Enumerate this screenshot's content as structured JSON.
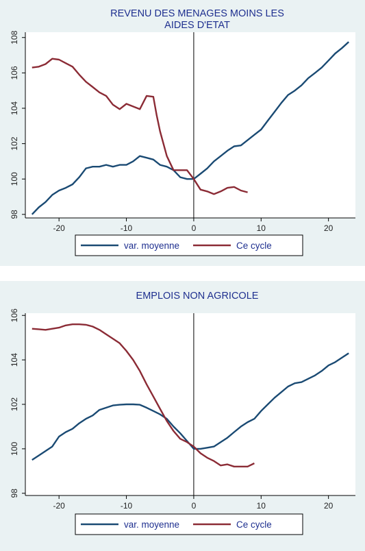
{
  "chart_data": [
    {
      "type": "line",
      "title_lines": [
        "REVENU DES MENAGES MOINS LES",
        "AIDES D'ETAT"
      ],
      "xlabel": "",
      "ylabel": "",
      "xlim": [
        -25,
        24
      ],
      "ylim": [
        97.8,
        108.3
      ],
      "x_ticks": [
        -20,
        -10,
        0,
        10,
        20
      ],
      "y_ticks": [
        98,
        100,
        102,
        104,
        106,
        108
      ],
      "grid": false,
      "vline_at": 0,
      "legend_position": "bottom",
      "series": [
        {
          "name": "var. moyenne",
          "color": "#1a4a73",
          "x": [
            -24,
            -23,
            -22,
            -21,
            -20,
            -19,
            -18,
            -17,
            -16,
            -15,
            -14,
            -13,
            -12,
            -11,
            -10,
            -9,
            -8,
            -7,
            -6,
            -5,
            -4,
            -3,
            -2,
            -1,
            0,
            1,
            2,
            3,
            4,
            5,
            6,
            7,
            8,
            9,
            10,
            11,
            12,
            13,
            14,
            15,
            16,
            17,
            18,
            19,
            20,
            21,
            22,
            23
          ],
          "y": [
            98.0,
            98.4,
            98.7,
            99.1,
            99.35,
            99.5,
            99.7,
            100.1,
            100.6,
            100.7,
            100.7,
            100.8,
            100.7,
            100.8,
            100.8,
            101.0,
            101.3,
            101.2,
            101.1,
            100.8,
            100.7,
            100.5,
            100.1,
            100.0,
            100.0,
            100.3,
            100.6,
            101.0,
            101.3,
            101.6,
            101.85,
            101.9,
            102.2,
            102.5,
            102.8,
            103.3,
            103.8,
            104.3,
            104.75,
            105.0,
            105.3,
            105.7,
            106.0,
            106.3,
            106.7,
            107.1,
            107.4,
            107.75
          ]
        },
        {
          "name": "Ce cycle",
          "color": "#8b2b35",
          "x": [
            -24,
            -23,
            -22,
            -21,
            -20,
            -19,
            -18,
            -17,
            -16,
            -15,
            -14,
            -13,
            -12,
            -11,
            -10,
            -9,
            -8,
            -7,
            -6,
            -5.5,
            -5,
            -4,
            -3,
            -2,
            -1,
            0,
            1,
            2,
            3,
            4,
            5,
            6,
            7,
            8
          ],
          "y": [
            106.3,
            106.35,
            106.5,
            106.8,
            106.75,
            106.55,
            106.35,
            105.9,
            105.5,
            105.2,
            104.9,
            104.7,
            104.2,
            103.95,
            104.25,
            104.1,
            103.95,
            104.7,
            104.65,
            103.6,
            102.7,
            101.3,
            100.5,
            100.5,
            100.5,
            100.0,
            99.4,
            99.3,
            99.15,
            99.3,
            99.5,
            99.55,
            99.35,
            99.25
          ]
        }
      ]
    },
    {
      "type": "line",
      "title_lines": [
        "EMPLOIS NON AGRICOLE"
      ],
      "xlabel": "",
      "ylabel": "",
      "xlim": [
        -25,
        24
      ],
      "ylim": [
        97.9,
        106.1
      ],
      "x_ticks": [
        -20,
        -10,
        0,
        10,
        20
      ],
      "y_ticks": [
        98,
        100,
        102,
        104,
        106
      ],
      "grid": false,
      "vline_at": 0,
      "legend_position": "bottom",
      "series": [
        {
          "name": "var. moyenne",
          "color": "#1a4a73",
          "x": [
            -24,
            -23,
            -22,
            -21,
            -20,
            -19,
            -18,
            -17,
            -16,
            -15,
            -14,
            -13,
            -12,
            -11,
            -10,
            -9,
            -8,
            -7,
            -6,
            -5,
            -4,
            -3,
            -2,
            -1,
            0,
            1,
            2,
            3,
            4,
            5,
            6,
            7,
            8,
            9,
            10,
            11,
            12,
            13,
            14,
            15,
            16,
            17,
            18,
            19,
            20,
            21,
            22,
            23
          ],
          "y": [
            99.5,
            99.7,
            99.9,
            100.1,
            100.55,
            100.75,
            100.9,
            101.15,
            101.35,
            101.5,
            101.75,
            101.85,
            101.95,
            101.98,
            102.0,
            102.0,
            101.98,
            101.85,
            101.7,
            101.55,
            101.35,
            101.0,
            100.7,
            100.35,
            100.0,
            100.0,
            100.05,
            100.1,
            100.3,
            100.5,
            100.75,
            101.0,
            101.2,
            101.35,
            101.7,
            102.0,
            102.3,
            102.55,
            102.8,
            102.95,
            103.0,
            103.15,
            103.3,
            103.5,
            103.75,
            103.9,
            104.1,
            104.3
          ]
        },
        {
          "name": "Ce cycle",
          "color": "#8b2b35",
          "x": [
            -24,
            -23,
            -22,
            -21,
            -20,
            -19,
            -18,
            -17,
            -16,
            -15,
            -14,
            -13,
            -12,
            -11,
            -10,
            -9,
            -8,
            -7,
            -6,
            -5,
            -4,
            -3,
            -2,
            -1,
            0,
            1,
            2,
            3,
            4,
            5,
            6,
            7,
            8,
            9
          ],
          "y": [
            105.4,
            105.38,
            105.35,
            105.4,
            105.45,
            105.55,
            105.6,
            105.6,
            105.58,
            105.5,
            105.35,
            105.15,
            104.95,
            104.75,
            104.4,
            104.0,
            103.5,
            102.9,
            102.35,
            101.8,
            101.25,
            100.8,
            100.45,
            100.3,
            100.1,
            99.8,
            99.6,
            99.45,
            99.25,
            99.3,
            99.2,
            99.2,
            99.2,
            99.35
          ]
        }
      ]
    }
  ]
}
